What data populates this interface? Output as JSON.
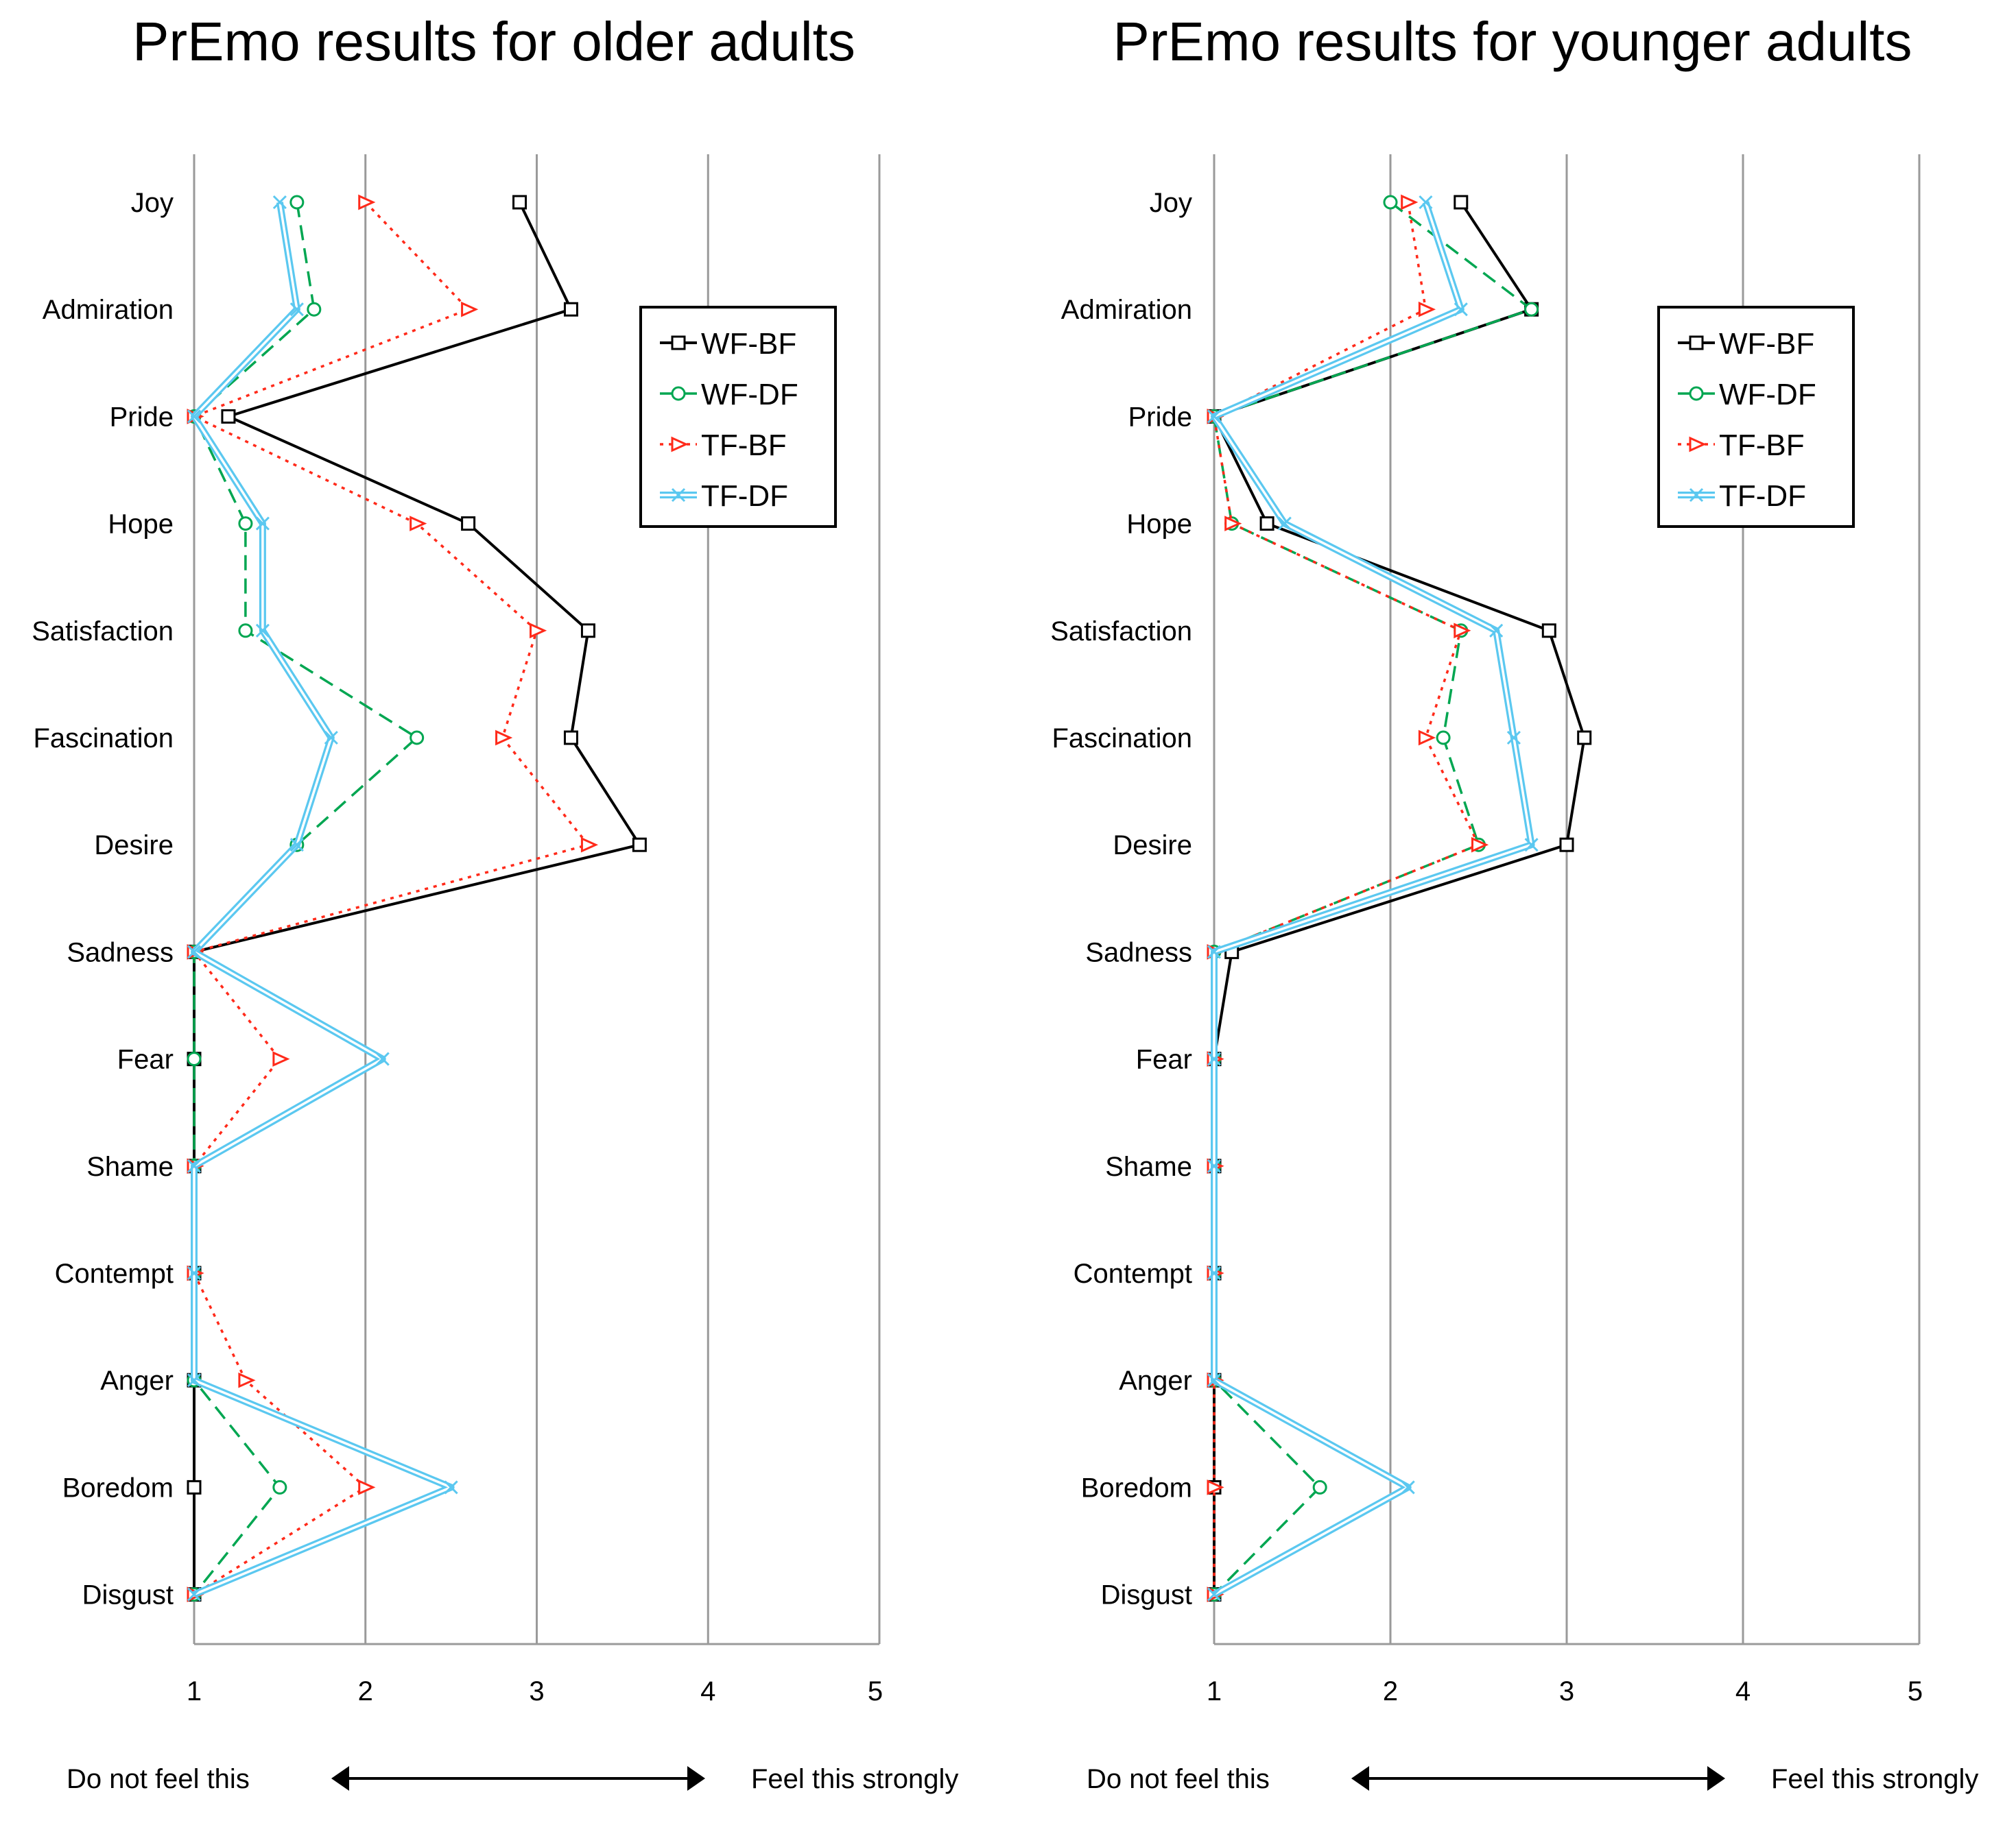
{
  "chart_data": [
    {
      "type": "line",
      "orientation": "horizontal-profile",
      "title": "PrEmo results for older adults",
      "categories": [
        "Joy",
        "Admiration",
        "Pride",
        "Hope",
        "Satisfaction",
        "Fascination",
        "Desire",
        "Sadness",
        "Fear",
        "Shame",
        "Contempt",
        "Anger",
        "Boredom",
        "Disgust"
      ],
      "xlim": [
        1,
        5
      ],
      "xticks": [
        "1",
        "2",
        "3",
        "4",
        "5"
      ],
      "axis_note_left": "Do not feel this",
      "axis_note_right": "Feel this strongly",
      "series": [
        {
          "name": "WF-BF",
          "values": [
            2.9,
            3.2,
            1.2,
            2.6,
            3.3,
            3.2,
            3.6,
            1.0,
            1.0,
            1.0,
            1.0,
            1.0,
            1.0,
            1.0
          ]
        },
        {
          "name": "WF-DF",
          "values": [
            1.6,
            1.7,
            1.0,
            1.3,
            1.3,
            2.3,
            1.6,
            1.0,
            1.0,
            1.0,
            1.0,
            1.0,
            1.5,
            1.0
          ]
        },
        {
          "name": "TF-BF",
          "values": [
            2.0,
            2.6,
            1.0,
            2.3,
            3.0,
            2.8,
            3.3,
            1.0,
            1.5,
            1.0,
            1.0,
            1.3,
            2.0,
            1.0
          ]
        },
        {
          "name": "TF-DF",
          "values": [
            1.5,
            1.6,
            1.0,
            1.4,
            1.4,
            1.8,
            1.6,
            1.0,
            2.1,
            1.0,
            1.0,
            1.0,
            2.5,
            1.0
          ]
        }
      ],
      "legend": "top-right"
    },
    {
      "type": "line",
      "orientation": "horizontal-profile",
      "title": "PrEmo results for younger adults",
      "categories": [
        "Joy",
        "Admiration",
        "Pride",
        "Hope",
        "Satisfaction",
        "Fascination",
        "Desire",
        "Sadness",
        "Fear",
        "Shame",
        "Contempt",
        "Anger",
        "Boredom",
        "Disgust"
      ],
      "xlim": [
        1,
        5
      ],
      "xticks": [
        "1",
        "2",
        "3",
        "4",
        "5"
      ],
      "axis_note_left": "Do not feel this",
      "axis_note_right": "Feel this strongly",
      "series": [
        {
          "name": "WF-BF",
          "values": [
            2.4,
            2.8,
            1.0,
            1.3,
            2.9,
            3.1,
            3.0,
            1.1,
            1.0,
            1.0,
            1.0,
            1.0,
            1.0,
            1.0
          ]
        },
        {
          "name": "WF-DF",
          "values": [
            2.0,
            2.8,
            1.0,
            1.1,
            2.4,
            2.3,
            2.5,
            1.0,
            1.0,
            1.0,
            1.0,
            1.0,
            1.6,
            1.0
          ]
        },
        {
          "name": "TF-BF",
          "values": [
            2.1,
            2.2,
            1.0,
            1.1,
            2.4,
            2.2,
            2.5,
            1.0,
            1.0,
            1.0,
            1.0,
            1.0,
            1.0,
            1.0
          ]
        },
        {
          "name": "TF-DF",
          "values": [
            2.2,
            2.4,
            1.0,
            1.4,
            2.6,
            2.7,
            2.8,
            1.0,
            1.0,
            1.0,
            1.0,
            1.0,
            2.1,
            1.0
          ]
        }
      ],
      "legend": "top-right"
    }
  ],
  "series_style": {
    "WF-BF": {
      "color": "#000000",
      "marker": "square",
      "dash": "solid"
    },
    "WF-DF": {
      "color": "#00a651",
      "marker": "circle",
      "dash": "dashed"
    },
    "TF-BF": {
      "color": "#ff2a1a",
      "marker": "triangle",
      "dash": "dotted"
    },
    "TF-DF": {
      "color": "#5bc8f0",
      "marker": "cross",
      "dash": "double"
    }
  }
}
